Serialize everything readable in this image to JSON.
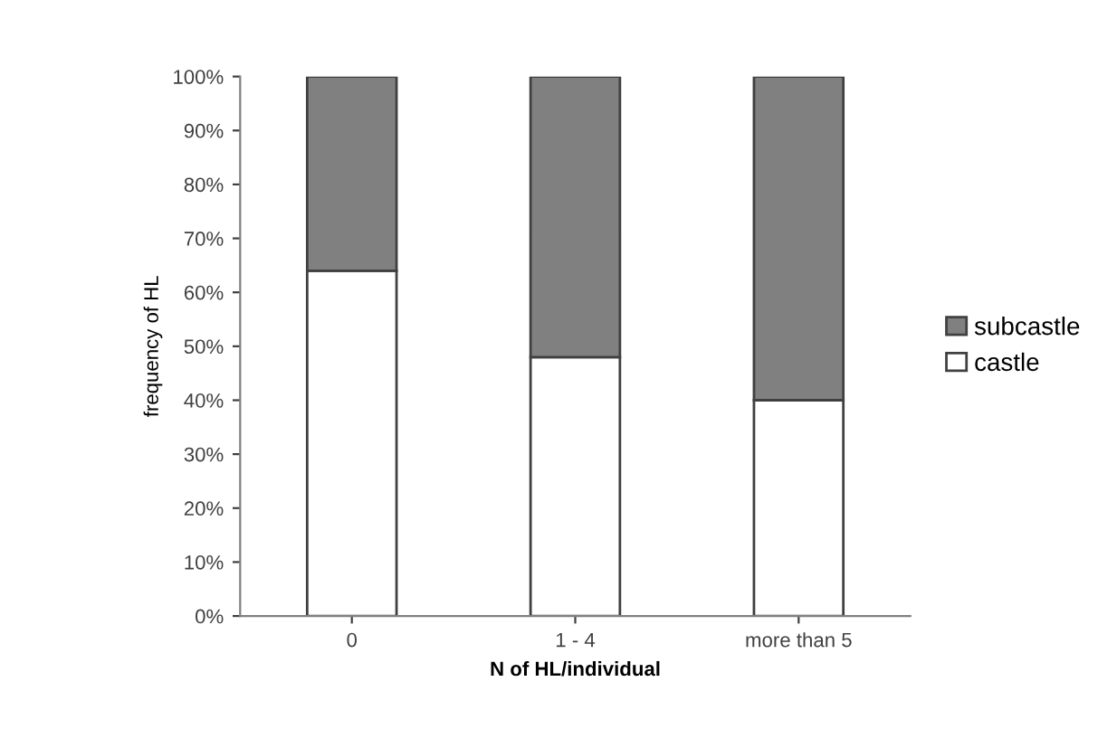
{
  "chart_data": {
    "type": "bar",
    "stacked": true,
    "xlabel": "N of HL/individual",
    "ylabel": "frequency of HL",
    "categories": [
      "0",
      "1 - 4",
      "more than 5"
    ],
    "series": [
      {
        "name": "castle",
        "color": "#ffffff",
        "values": [
          64,
          48,
          40
        ]
      },
      {
        "name": "subcastle",
        "color": "#808080",
        "values": [
          36,
          52,
          60
        ]
      }
    ],
    "ylim": [
      0,
      100
    ],
    "yticks": [
      {
        "value": 0,
        "label": "0%"
      },
      {
        "value": 10,
        "label": "10%"
      },
      {
        "value": 20,
        "label": "20%"
      },
      {
        "value": 30,
        "label": "30%"
      },
      {
        "value": 40,
        "label": "40%"
      },
      {
        "value": 50,
        "label": "50%"
      },
      {
        "value": 60,
        "label": "60%"
      },
      {
        "value": 70,
        "label": "70%"
      },
      {
        "value": 80,
        "label": "80%"
      },
      {
        "value": 90,
        "label": "90%"
      },
      {
        "value": 100,
        "label": "100%"
      }
    ],
    "grid": false,
    "legend": "right"
  }
}
